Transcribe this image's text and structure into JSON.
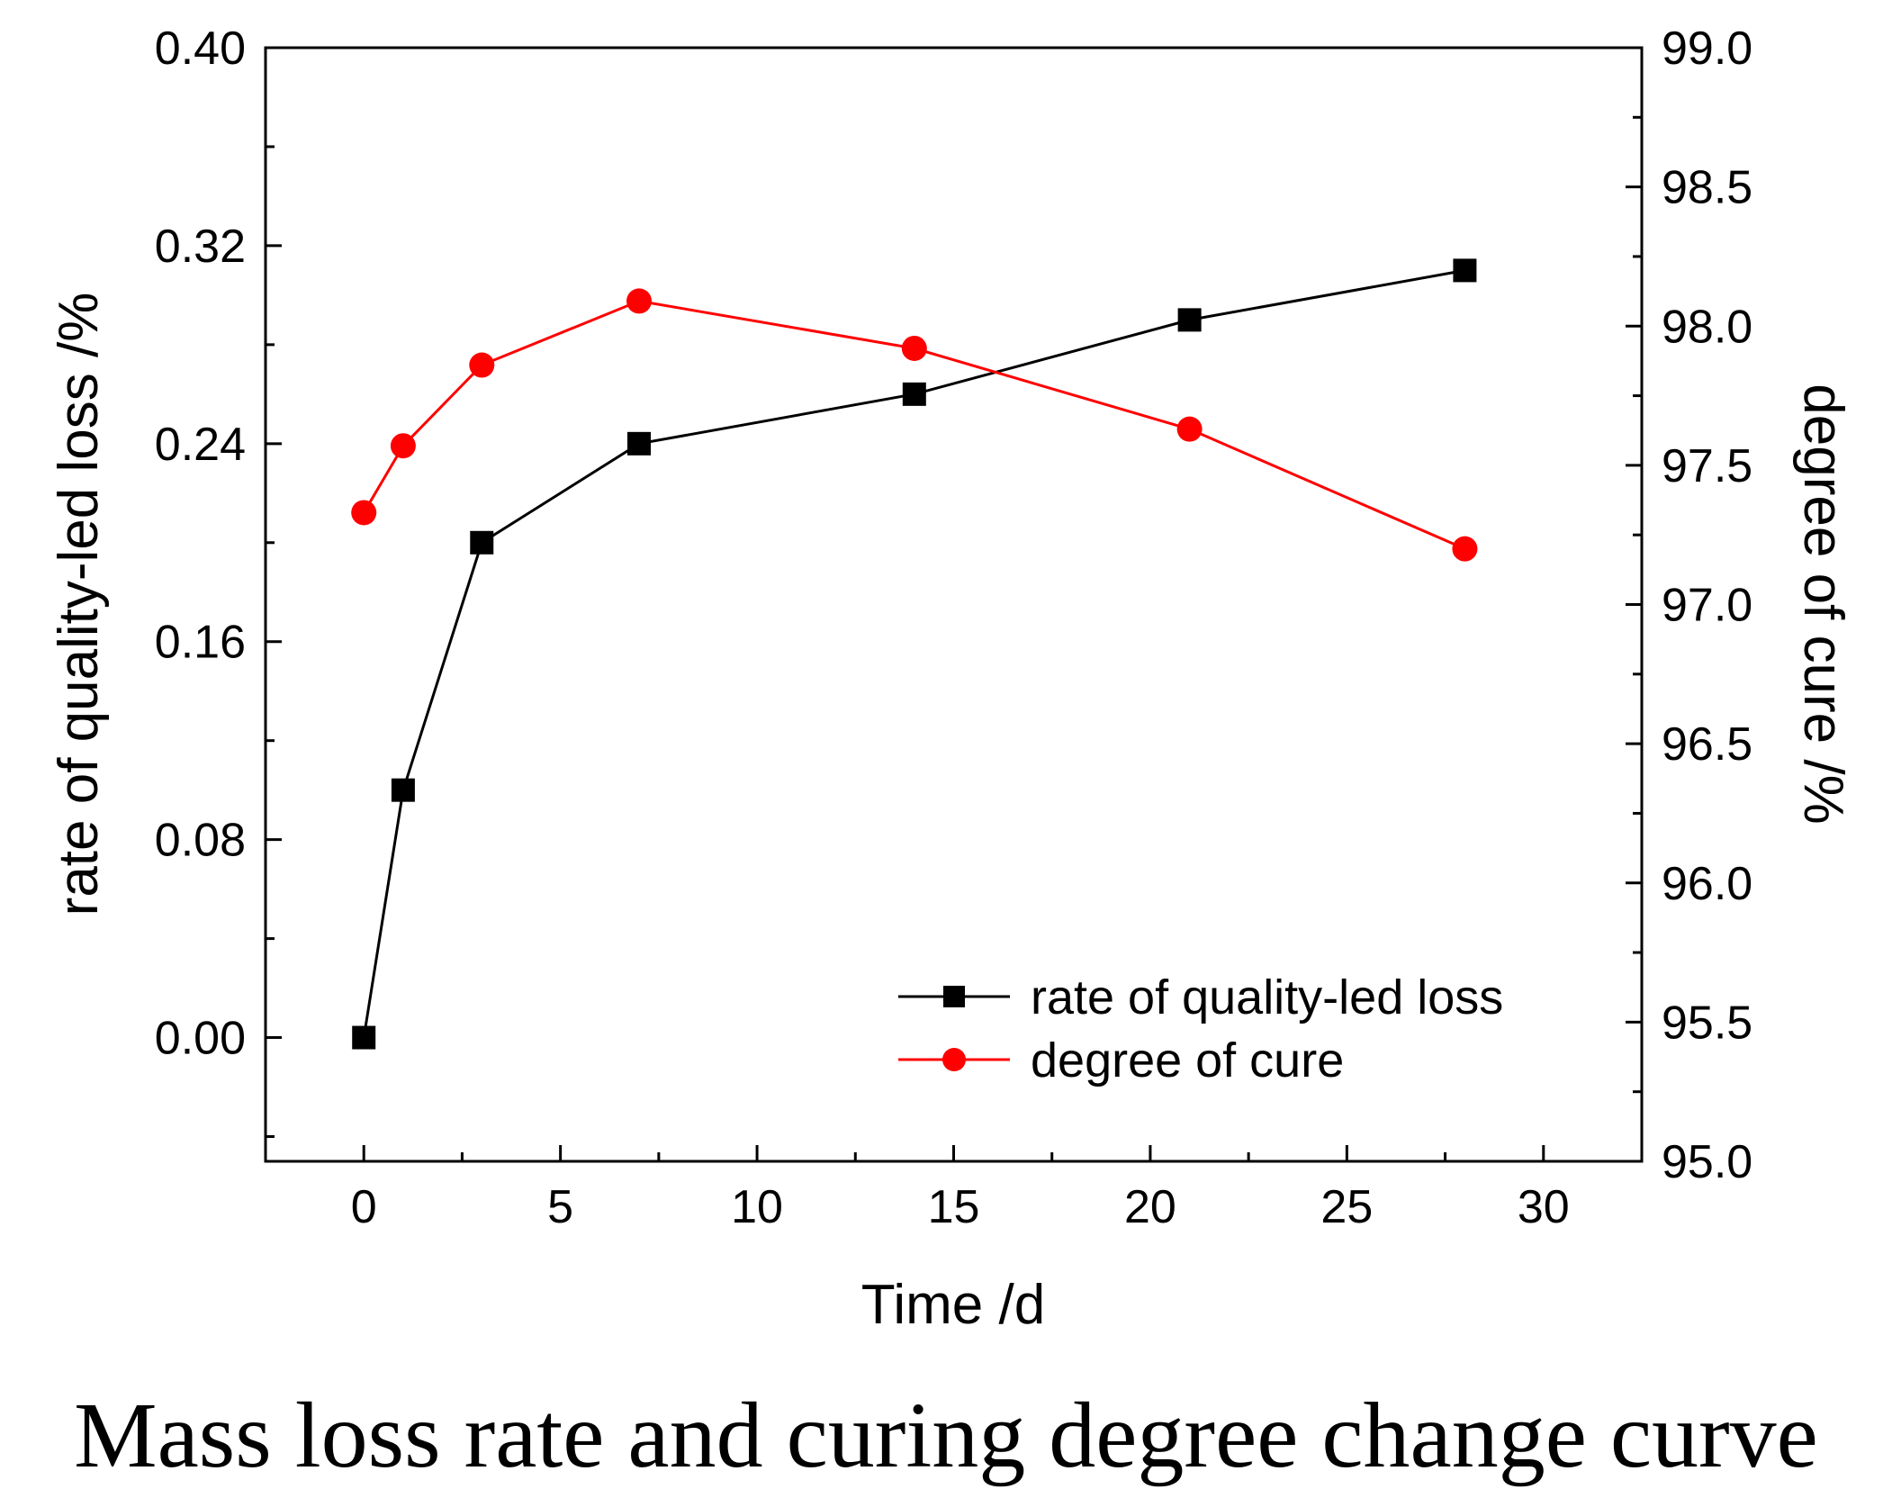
{
  "caption": "Mass loss rate and curing degree change curve",
  "chart_data": {
    "type": "line",
    "xlabel": "Time /d",
    "ylabel_left": "rate of quality-led loss /%",
    "ylabel_right": "degree of cure /%",
    "xlim": [
      -2.5,
      32.5
    ],
    "ylim_left": [
      -0.05,
      0.4
    ],
    "ylim_right": [
      95.0,
      99.0
    ],
    "xticks": [
      0,
      5,
      10,
      15,
      20,
      25,
      30
    ],
    "xtick_labels": [
      "0",
      "5",
      "10",
      "15",
      "20",
      "25",
      "30"
    ],
    "yticks_left": [
      0.0,
      0.08,
      0.16,
      0.24,
      0.32,
      0.4
    ],
    "ytick_labels_left": [
      "0.00",
      "0.08",
      "0.16",
      "0.24",
      "0.32",
      "0.40"
    ],
    "yticks_right": [
      95.0,
      95.5,
      96.0,
      96.5,
      97.0,
      97.5,
      98.0,
      98.5,
      99.0
    ],
    "ytick_labels_right": [
      "95.0",
      "95.5",
      "96.0",
      "96.5",
      "97.0",
      "97.5",
      "98.0",
      "98.5",
      "99.0"
    ],
    "grid": false,
    "legend_position": "bottom-right",
    "series": [
      {
        "name": "rate of quality-led loss",
        "axis": "left",
        "color": "#000000",
        "marker": "square",
        "x": [
          0,
          1,
          3,
          7,
          14,
          21,
          28
        ],
        "y": [
          0.0,
          0.1,
          0.2,
          0.24,
          0.26,
          0.29,
          0.31
        ]
      },
      {
        "name": "degree of cure",
        "axis": "right",
        "color": "#ff0000",
        "marker": "circle",
        "x": [
          0,
          1,
          3,
          7,
          14,
          21,
          28
        ],
        "y": [
          97.33,
          97.57,
          97.86,
          98.09,
          97.92,
          97.63,
          97.2
        ]
      }
    ]
  }
}
